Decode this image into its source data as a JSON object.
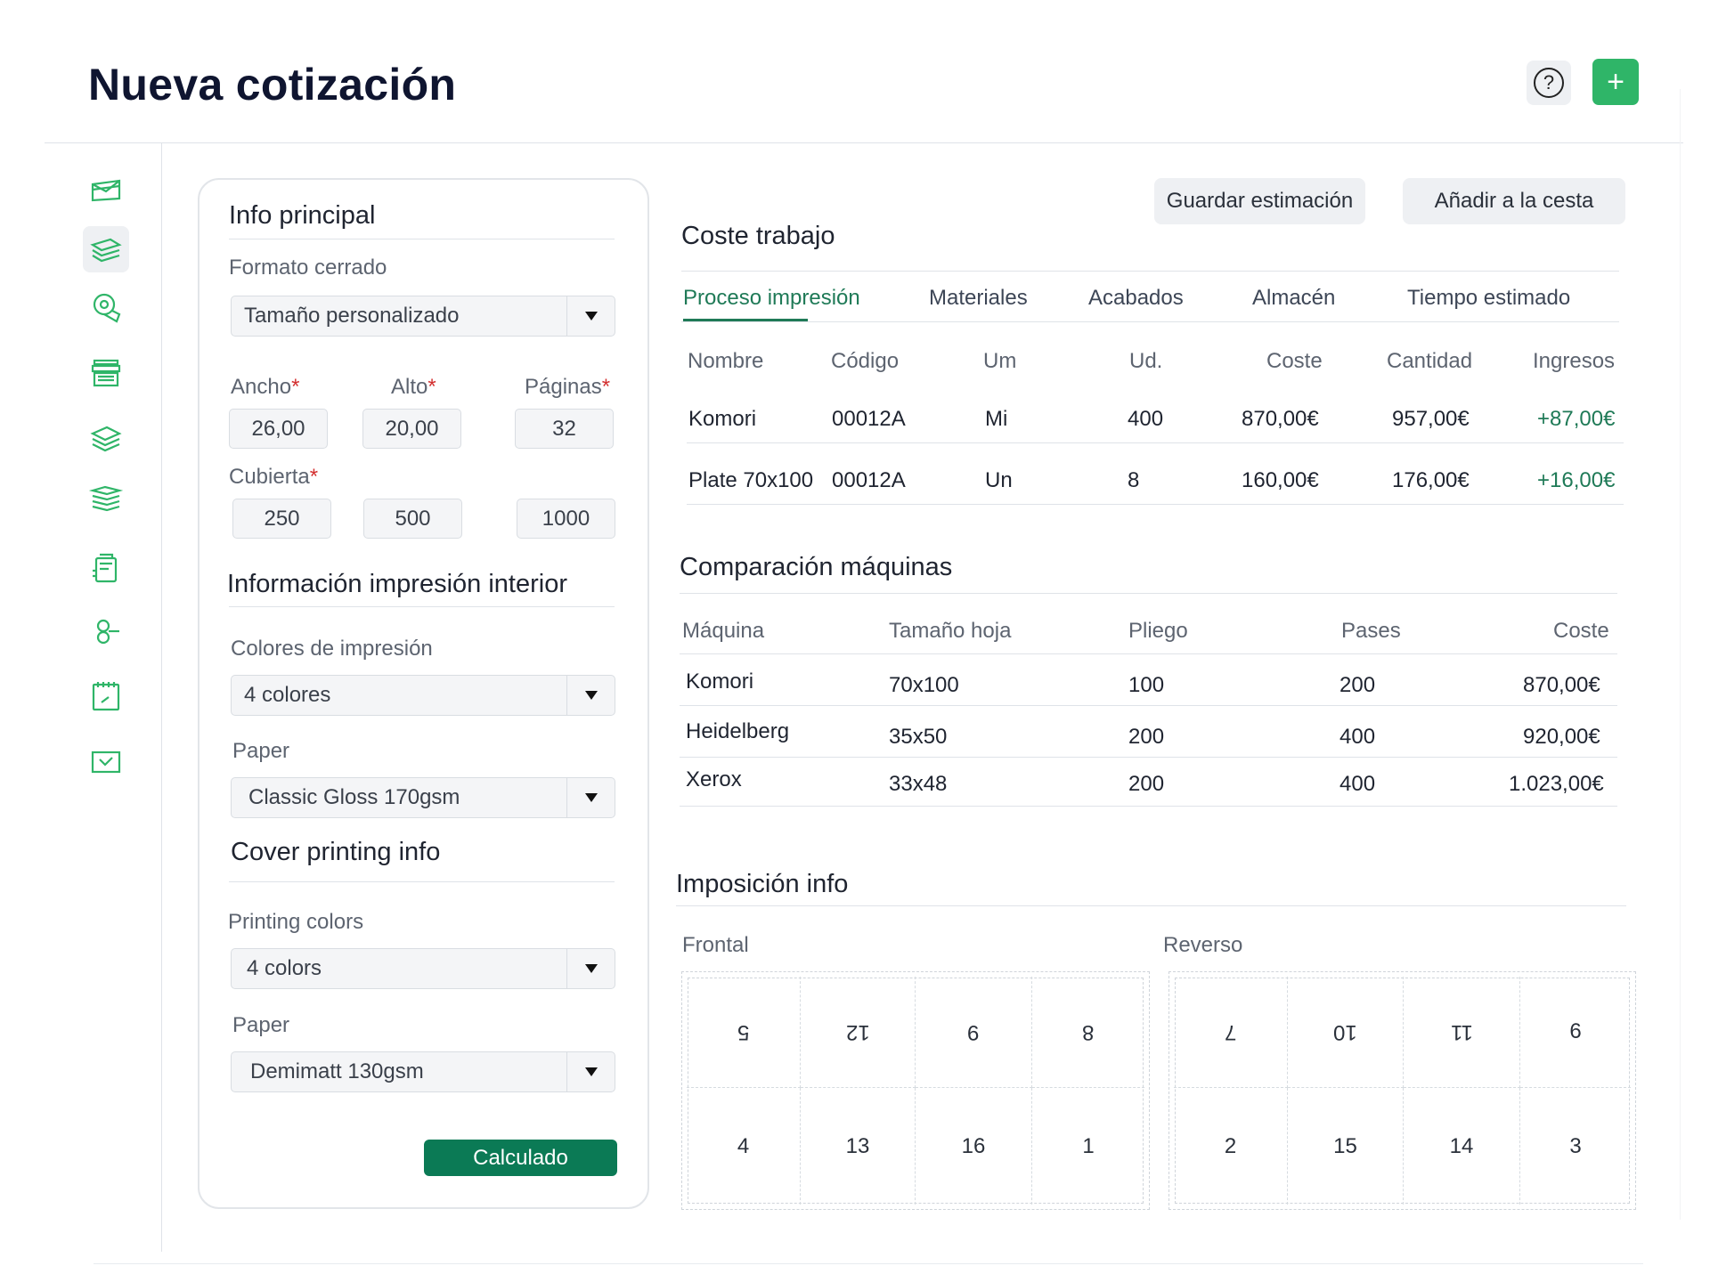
{
  "page": {
    "title": "Nueva cotización"
  },
  "header": {
    "help_icon": "help-circle-icon",
    "help_glyph": "?",
    "add_icon": "plus-icon",
    "add_glyph": "+"
  },
  "sidebar": {
    "accent_color": "#2fb568",
    "icons": [
      "envelope-box-icon",
      "stacked-paper-icon",
      "paper-roll-icon",
      "printer-icon",
      "layers-icon",
      "stacked-sheets-icon",
      "binder-icon",
      "binding-rings-icon",
      "notepad-icon",
      "inbox-check-icon"
    ]
  },
  "form": {
    "info_principal": {
      "title": "Info principal",
      "formato_label": "Formato cerrado",
      "formato_value": "Tamaño personalizado",
      "ancho_label": "Ancho",
      "alto_label": "Alto",
      "paginas_label": "Páginas",
      "required_mark": "*",
      "ancho_value": "26,00",
      "alto_value": "20,00",
      "paginas_value": "32",
      "cubierta_label": "Cubierta",
      "cubierta_values": [
        "250",
        "500",
        "1000"
      ]
    },
    "interior": {
      "title": "Información impresión interior",
      "colores_label": "Colores de impresión",
      "colores_value": "4 colores",
      "paper_label": "Paper",
      "paper_value": "Classic Gloss 170gsm"
    },
    "cover": {
      "title": "Cover printing info",
      "colors_label": "Printing colors",
      "colors_value": "4 colors",
      "paper_label": "Paper",
      "paper_value": "Demimatt 130gsm"
    },
    "calc_button": "Calculado"
  },
  "actions": {
    "save_estimate": "Guardar estimación",
    "add_to_cart": "Añadir a la cesta"
  },
  "coste_trabajo": {
    "title": "Coste trabajo",
    "tabs": [
      "Proceso impresión",
      "Materiales",
      "Acabados",
      "Almacén",
      "Tiempo estimado"
    ],
    "active_tab": "Proceso impresión",
    "headers": [
      "Nombre",
      "Código",
      "Um",
      "Ud.",
      "Coste",
      "Cantidad",
      "Ingresos"
    ],
    "rows": [
      [
        "Komori",
        "00012A",
        "Mi",
        "400",
        "870,00€",
        "957,00€",
        "+87,00€"
      ],
      [
        "Plate 70x100",
        "00012A",
        "Un",
        "8",
        "160,00€",
        "176,00€",
        "+16,00€"
      ]
    ],
    "positive_color": "#1f7a57"
  },
  "comparacion": {
    "title": "Comparación máquinas",
    "headers": [
      "Máquina",
      "Tamaño hoja",
      "Pliego",
      "Pases",
      "Coste"
    ],
    "rows": [
      [
        "Komori",
        "70x100",
        "100",
        "200",
        "870,00€"
      ],
      [
        "Heidelberg",
        "35x50",
        "200",
        "400",
        "920,00€"
      ],
      [
        "Xerox",
        "33x48",
        "200",
        "400",
        "1.023,00€"
      ]
    ]
  },
  "imposicion": {
    "title": "Imposición info",
    "frontal_label": "Frontal",
    "reverso_label": "Reverso",
    "frontal_top": [
      "5",
      "12",
      "9",
      "8"
    ],
    "frontal_bottom": [
      "4",
      "13",
      "16",
      "1"
    ],
    "reverso_top": [
      "7",
      "10",
      "11",
      "6"
    ],
    "reverso_bottom": [
      "2",
      "15",
      "14",
      "3"
    ]
  }
}
